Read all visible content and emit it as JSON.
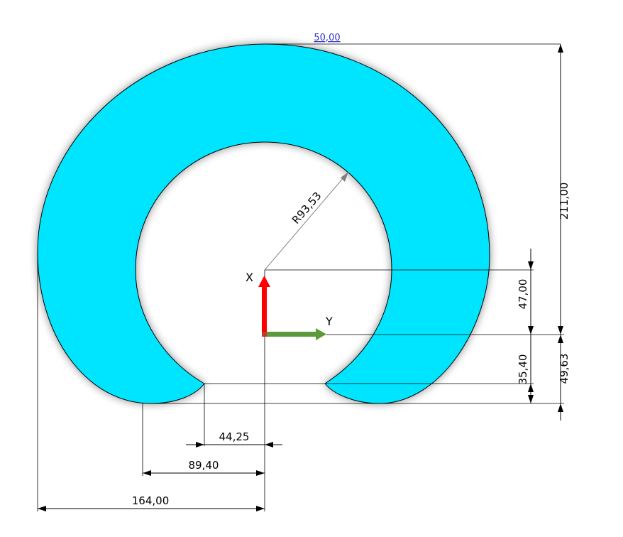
{
  "colors": {
    "part_fill": "#00E5FF",
    "outline": "#000000",
    "x_axis_arrow": "#FF0000",
    "y_axis_arrow": "#5B9A3A",
    "radius_leader": "#808080",
    "top_dimension_text": "#3333CC",
    "background": "#FFFFFF"
  },
  "axes": {
    "x_label": "X",
    "y_label": "Y"
  },
  "dimensions": {
    "top_width": "50,00",
    "radius": "R93,53",
    "overall_height": "211,00",
    "center_offset": "47,00",
    "gap_height": "35,40",
    "lower_height": "49,63",
    "inner_gap_half": "44,25",
    "foot_offset": "89,40",
    "overall_half_width": "164,00"
  },
  "icons": {
    "arrowhead": "arrowhead-icon",
    "axis_triad": "coordinate-triad-icon"
  }
}
